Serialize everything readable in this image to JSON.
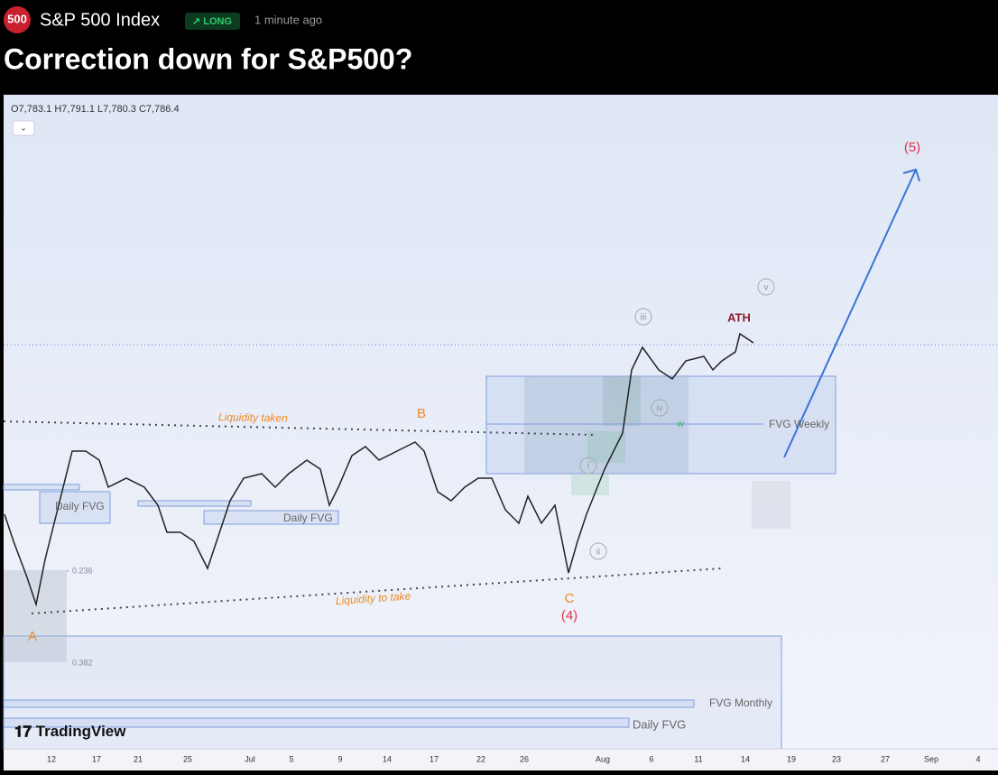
{
  "header": {
    "badge": "500",
    "symbol": "S&P 500 Index",
    "tag": "LONG",
    "time": "1 minute ago",
    "title": "Correction down for S&P500?"
  },
  "chart": {
    "ohlc": {
      "open": "O7,783.1",
      "high": "H7,791.1",
      "low": "L7,780.3",
      "close": "C7,786.4"
    },
    "annotations": {
      "wave5": "(5)",
      "wave_v": "v",
      "ath": "ATH",
      "wave_iii": "iii",
      "wave_iv": "iv",
      "wave_i": "i",
      "wave_ii": "ii",
      "b": "B",
      "c": "C",
      "wave4": "(4)",
      "a": "A",
      "liquidity_taken": "Liquidity taken",
      "liquidity_to_take": "Liquidity to take",
      "fvg_weekly": "FVG Weekly",
      "w": "W",
      "daily_fvg_1": "Daily FVG",
      "daily_fvg_2": "Daily FVG",
      "fvg_monthly": "FVG Monthly",
      "daily_fvg_3": "Daily FVG",
      "fib_236": "0.236",
      "fib_382": "0.382"
    },
    "x_labels": [
      "12",
      "17",
      "21",
      "25",
      "Jul",
      "5",
      "9",
      "14",
      "17",
      "22",
      "26",
      "Aug",
      "6",
      "11",
      "14",
      "19",
      "23",
      "27",
      "Sep",
      "4"
    ],
    "logo": "TradingView"
  }
}
